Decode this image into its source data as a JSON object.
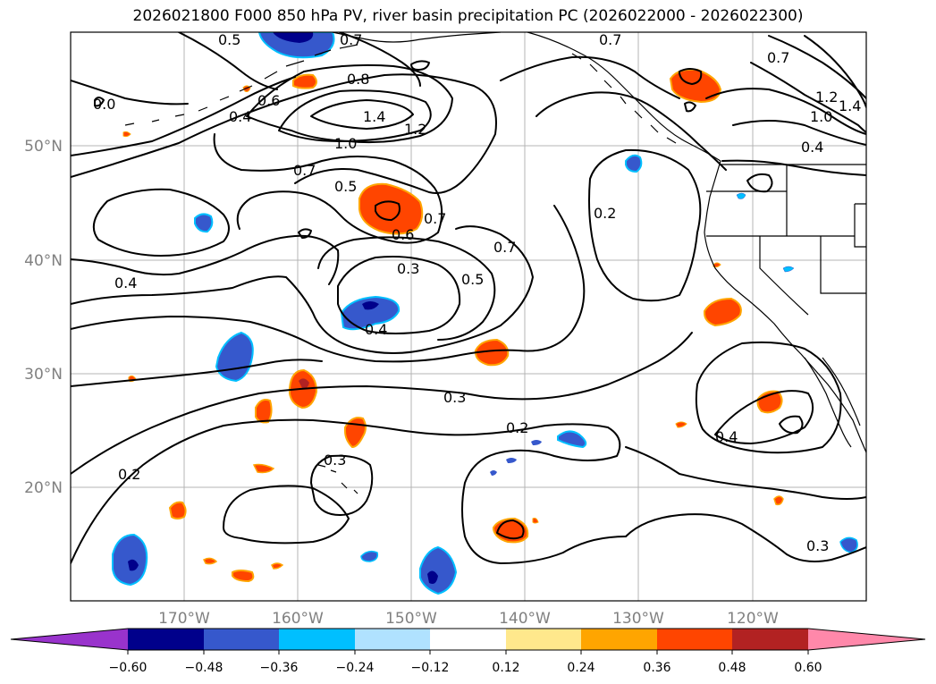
{
  "title": "2026021800 F000 850 hPa PV, river basin precipitation PC (2026022000 - 2026022300)",
  "map": {
    "lon_labels": [
      "170°W",
      "160°W",
      "150°W",
      "140°W",
      "130°W",
      "120°W"
    ],
    "lat_labels": [
      "50°N",
      "40°N",
      "30°N",
      "20°N"
    ],
    "contour_labels": [
      "0.5",
      "0.7",
      "0.7",
      "0.7",
      "0.0",
      "0.4",
      "0.6",
      "0.8",
      "1.4",
      "1.2",
      "1.0",
      "0.7",
      "0.5",
      "0.6",
      "0.7",
      "0.7",
      "0.2",
      "0.3",
      "0.5",
      "0.4",
      "0.3",
      "0.2",
      "0.4",
      "0.3",
      "0.2",
      "0.3",
      "0.4",
      "1.2",
      "1.0",
      "1.4",
      "0.4"
    ]
  },
  "colorbar": {
    "tick_labels": [
      "−0.60",
      "−0.48",
      "−0.36",
      "−0.24",
      "−0.12",
      "0.12",
      "0.24",
      "0.36",
      "0.48",
      "0.60"
    ],
    "colors": [
      "#9933cc",
      "#00008b",
      "#3658cc",
      "#00bfff",
      "#b0e2ff",
      "#ffffff",
      "#ffe88c",
      "#ffa500",
      "#ff4500",
      "#b22222",
      "#ff88aa"
    ]
  }
}
